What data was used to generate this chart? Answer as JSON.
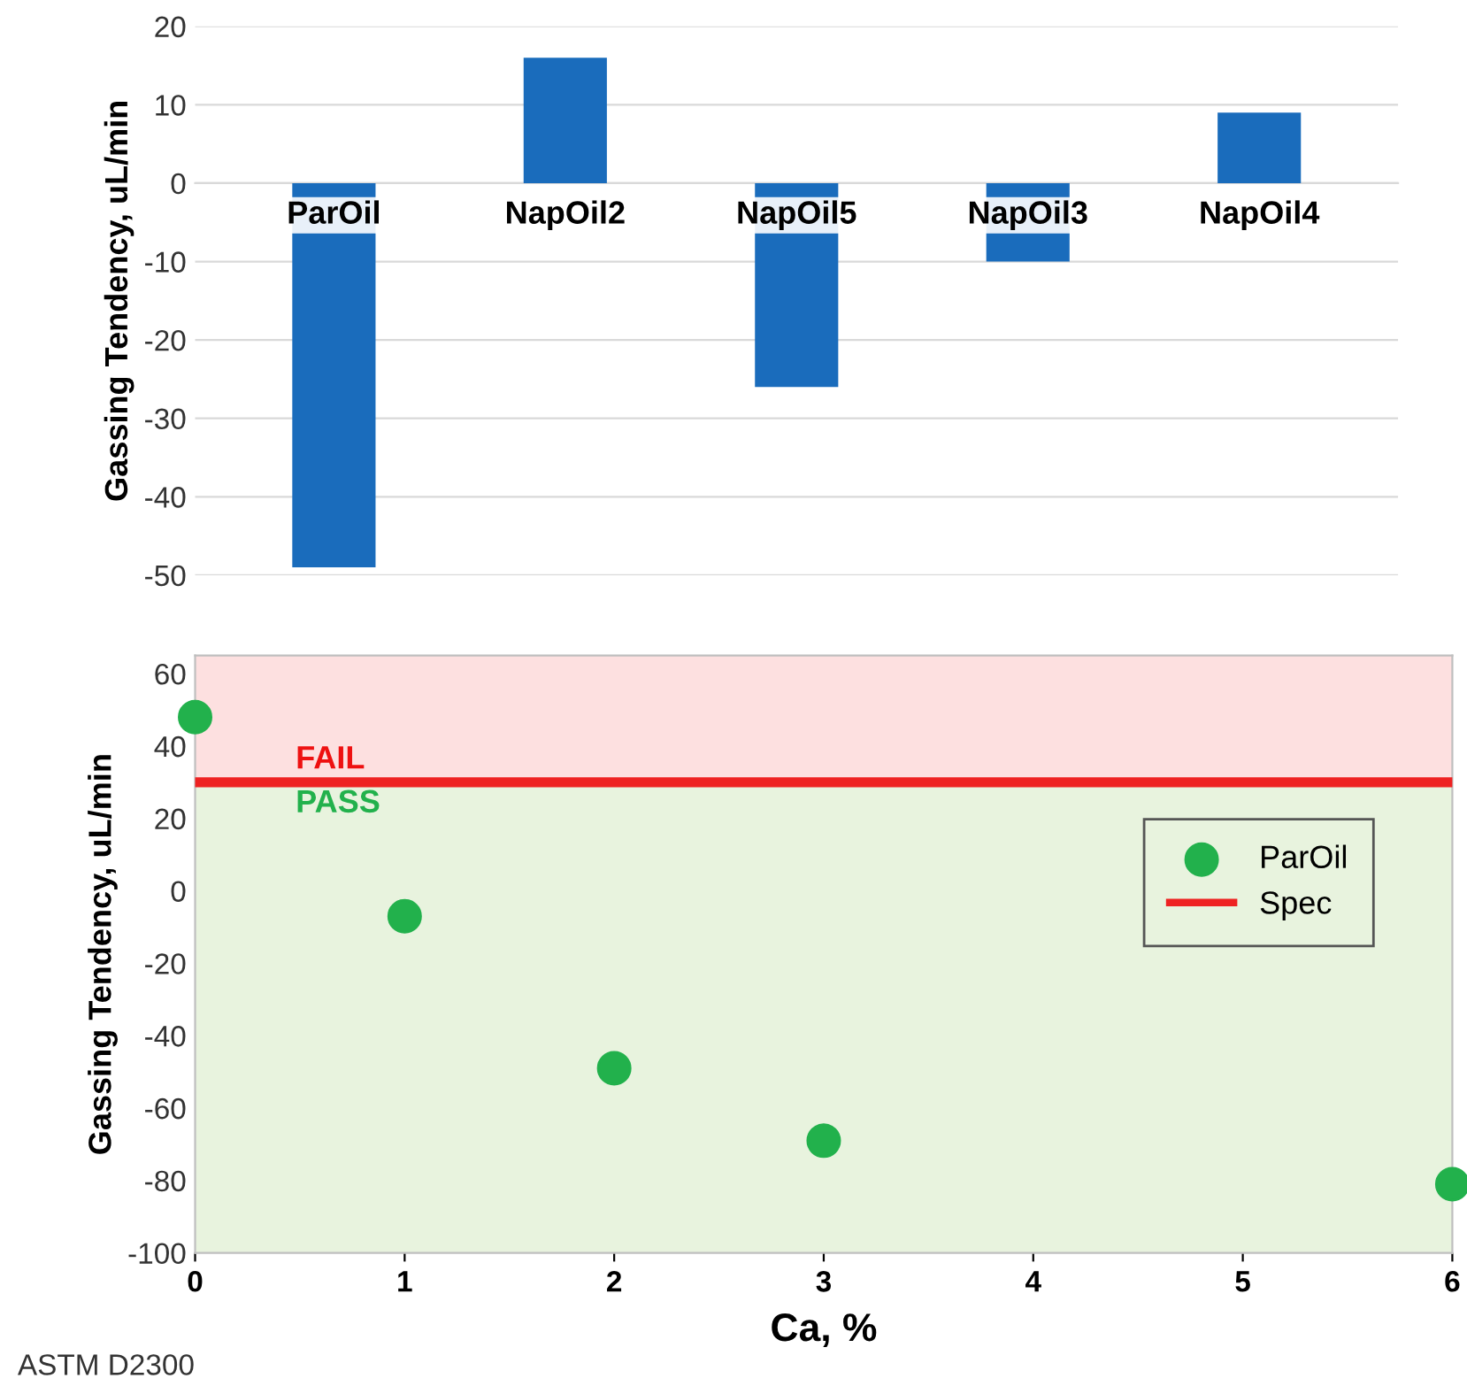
{
  "chart_data": [
    {
      "type": "bar",
      "categories": [
        "ParOil",
        "NapOil2",
        "NapOil5",
        "NapOil3",
        "NapOil4"
      ],
      "values": [
        -49,
        16,
        -26,
        -10,
        9
      ],
      "color": "#1a6cbc",
      "ylabel": "Gassing Tendency, uL/min",
      "ylim": [
        -50,
        20
      ],
      "yticks": [
        -50,
        -40,
        -30,
        -20,
        -10,
        0,
        10,
        20
      ],
      "grid": "y",
      "legend": false
    },
    {
      "type": "scatter",
      "xlabel": "Ca, %",
      "ylabel": "Gassing Tendency, uL/min",
      "x": [
        0,
        1,
        2,
        3,
        6
      ],
      "series": [
        {
          "name": "ParOil",
          "color": "#22b14c",
          "values": [
            48,
            -7,
            -49,
            -69,
            -81
          ]
        }
      ],
      "marker": "circle",
      "xlim": [
        0,
        6
      ],
      "xticks": [
        0,
        1,
        2,
        3,
        4,
        5,
        6
      ],
      "ylim": [
        -100,
        65
      ],
      "yticks": [
        -100,
        -80,
        -60,
        -40,
        -20,
        0,
        20,
        40,
        60
      ],
      "ref_lines": [
        {
          "axis": "y",
          "value": 30,
          "label": "Spec",
          "color": "#ee2222"
        }
      ],
      "bands": [
        {
          "axis": "y",
          "from": 30,
          "to": 65,
          "label": "FAIL",
          "color": "#fde0e0"
        },
        {
          "axis": "y",
          "from": -100,
          "to": 30,
          "label": "PASS",
          "color": "#e8f3de"
        }
      ],
      "grid": false,
      "legend": "right",
      "annotations": [
        "ASTM D2300"
      ]
    }
  ]
}
